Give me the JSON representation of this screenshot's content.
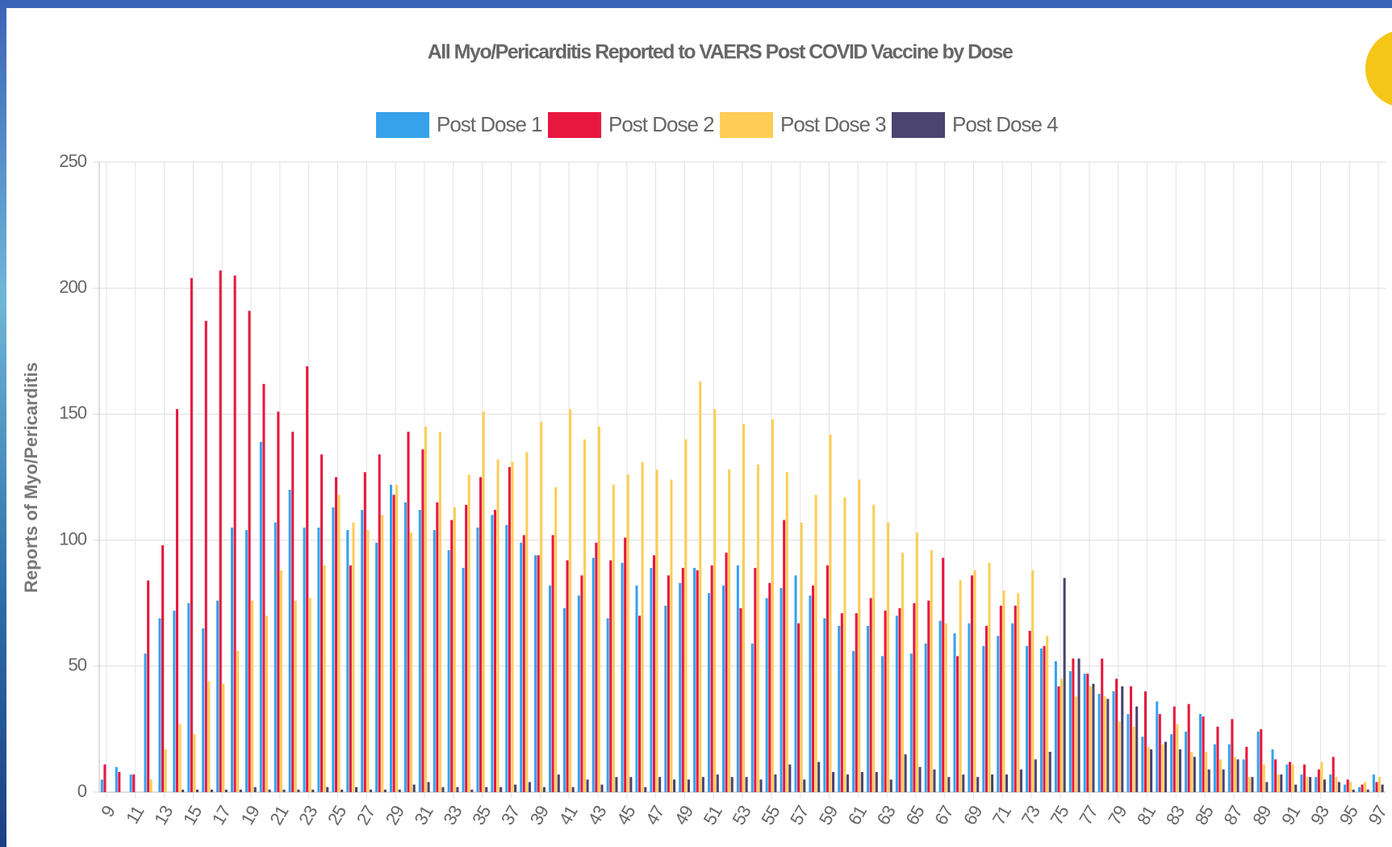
{
  "chart_data": {
    "type": "bar",
    "title": "All Myo/Pericarditis Reported to VAERS Post COVID Vaccine by Dose",
    "y_label": "Reports of Myo/Pericarditis",
    "categories": [
      "9",
      null,
      "11",
      null,
      "13",
      null,
      "15",
      null,
      "17",
      null,
      "19",
      null,
      "21",
      null,
      "23",
      null,
      "25",
      null,
      "27",
      null,
      "29",
      null,
      "31",
      null,
      "33",
      null,
      "35",
      null,
      "37",
      null,
      "39",
      null,
      "41",
      null,
      "43",
      null,
      "45",
      null,
      "47",
      null,
      "49",
      null,
      "51",
      null,
      "53",
      null,
      "55",
      null,
      "57",
      null,
      "59",
      null,
      "61",
      null,
      "63",
      null,
      "65",
      null,
      "67",
      null,
      "69",
      null,
      "71",
      null,
      "73",
      null,
      "75",
      null,
      "77",
      null,
      "79",
      null,
      "81",
      null,
      "83",
      null,
      "85",
      null,
      "87",
      null,
      "89",
      null,
      "91",
      null,
      "93",
      null,
      "95",
      null,
      "97"
    ],
    "series": [
      {
        "name": "Post Dose 1",
        "color": "#36a2eb",
        "values": [
          5,
          10,
          7,
          55,
          69,
          72,
          75,
          65,
          76,
          105,
          104,
          139,
          107,
          120,
          105,
          105,
          113,
          104,
          112,
          99,
          122,
          115,
          112,
          104,
          96,
          89,
          105,
          110,
          106,
          99,
          94,
          82,
          73,
          78,
          93,
          69,
          91,
          82,
          89,
          74,
          83,
          89,
          79,
          82,
          90,
          59,
          77,
          81,
          86,
          78,
          69,
          66,
          56,
          66,
          54,
          70,
          55,
          59,
          68,
          63,
          67,
          58,
          62,
          67,
          58,
          57,
          52,
          48,
          47,
          39,
          40,
          31,
          22,
          36,
          23,
          24,
          31,
          19,
          19,
          13,
          24,
          17,
          11,
          7,
          6,
          7,
          3,
          2,
          7
        ]
      },
      {
        "name": "Post Dose 2",
        "color": "#e8173f",
        "values": [
          11,
          8,
          7,
          84,
          98,
          152,
          204,
          187,
          207,
          205,
          191,
          162,
          151,
          143,
          169,
          134,
          125,
          90,
          127,
          134,
          118,
          143,
          136,
          115,
          108,
          114,
          125,
          112,
          129,
          102,
          94,
          102,
          92,
          86,
          99,
          92,
          101,
          70,
          94,
          86,
          89,
          88,
          90,
          95,
          73,
          89,
          83,
          108,
          67,
          82,
          90,
          71,
          71,
          77,
          72,
          73,
          75,
          76,
          93,
          54,
          86,
          66,
          74,
          74,
          64,
          58,
          42,
          53,
          47,
          53,
          45,
          42,
          40,
          31,
          34,
          35,
          30,
          26,
          29,
          18,
          25,
          13,
          12,
          11,
          9,
          14,
          5,
          3,
          4
        ]
      },
      {
        "name": "Post Dose 3",
        "color": "#ffcd56",
        "values": [
          0,
          0,
          0,
          5,
          17,
          27,
          23,
          44,
          43,
          56,
          76,
          70,
          88,
          76,
          77,
          90,
          118,
          107,
          104,
          110,
          122,
          103,
          145,
          143,
          113,
          126,
          151,
          132,
          131,
          135,
          147,
          121,
          152,
          140,
          145,
          122,
          126,
          131,
          128,
          124,
          140,
          163,
          152,
          128,
          146,
          130,
          148,
          127,
          107,
          118,
          142,
          117,
          124,
          114,
          107,
          95,
          103,
          96,
          67,
          84,
          88,
          91,
          80,
          79,
          88,
          62,
          45,
          38,
          42,
          38,
          28,
          26,
          18,
          19,
          27,
          16,
          16,
          13,
          14,
          6,
          11,
          7,
          11,
          6,
          12,
          6,
          4,
          4,
          6
        ]
      },
      {
        "name": "Post Dose 4",
        "color": "#4b4370",
        "values": [
          0,
          0,
          0,
          0,
          0,
          1,
          1,
          1,
          1,
          1,
          2,
          1,
          1,
          1,
          1,
          2,
          1,
          2,
          1,
          1,
          1,
          3,
          4,
          2,
          2,
          1,
          2,
          2,
          3,
          4,
          2,
          7,
          2,
          5,
          3,
          6,
          6,
          2,
          6,
          5,
          5,
          6,
          7,
          6,
          6,
          5,
          7,
          11,
          5,
          12,
          8,
          7,
          8,
          8,
          5,
          15,
          10,
          9,
          6,
          7,
          6,
          7,
          7,
          9,
          13,
          16,
          85,
          53,
          43,
          37,
          42,
          34,
          17,
          20,
          17,
          14,
          9,
          9,
          13,
          6,
          4,
          7,
          3,
          6,
          5,
          4,
          1,
          1,
          3
        ]
      }
    ],
    "ylim": [
      0,
      250
    ],
    "yticks": [
      0,
      50,
      100,
      150,
      200,
      250
    ],
    "grid": true,
    "legend": "top"
  }
}
